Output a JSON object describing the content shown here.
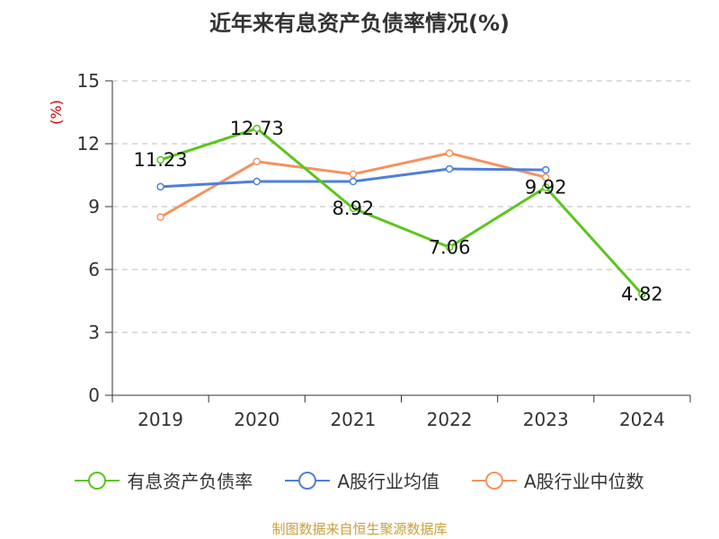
{
  "title": "近年来有息资产负债率情况(%)",
  "source": "制图数据来自恒生聚源数据库",
  "colors": {
    "series1": "#5cc51e",
    "series2": "#4f7fd9",
    "series3": "#f5925e",
    "ylabel": "#cc0000",
    "grid": "#bbbbbb",
    "axis": "#333333"
  },
  "chart_data": {
    "type": "line",
    "title": "近年来有息资产负债率情况(%)",
    "ylabel": "(%)",
    "xlabel": "",
    "categories": [
      "2019",
      "2020",
      "2021",
      "2022",
      "2023",
      "2024"
    ],
    "ylim": [
      0,
      15
    ],
    "yticks": [
      0,
      3,
      6,
      9,
      12,
      15
    ],
    "grid": "horizontal-dashed",
    "legend": "bottom",
    "series": [
      {
        "name": "有息资产负债率",
        "values": [
          11.23,
          12.73,
          8.92,
          7.06,
          9.92,
          4.82
        ],
        "data_labels": [
          "11.23",
          "12.73",
          "8.92",
          "7.06",
          "9.92",
          "4.82"
        ]
      },
      {
        "name": "A股行业均值",
        "values": [
          9.95,
          10.2,
          10.2,
          10.8,
          10.75,
          null
        ]
      },
      {
        "name": "A股行业中位数",
        "values": [
          8.5,
          11.15,
          10.55,
          11.55,
          10.4,
          null
        ]
      }
    ]
  }
}
